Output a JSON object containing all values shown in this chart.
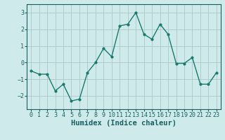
{
  "x": [
    0,
    1,
    2,
    3,
    4,
    5,
    6,
    7,
    8,
    9,
    10,
    11,
    12,
    13,
    14,
    15,
    16,
    17,
    18,
    19,
    20,
    21,
    22,
    23
  ],
  "y": [
    -0.5,
    -0.7,
    -0.7,
    -1.7,
    -1.3,
    -2.3,
    -2.2,
    -0.6,
    0.0,
    0.85,
    0.35,
    2.2,
    2.3,
    3.0,
    1.7,
    1.4,
    2.3,
    1.7,
    -0.05,
    -0.05,
    0.3,
    -1.3,
    -1.3,
    -0.6
  ],
  "line_color": "#1a7a6e",
  "marker": "o",
  "marker_size": 2.0,
  "linewidth": 1.0,
  "xlabel": "Humidex (Indice chaleur)",
  "xlim": [
    -0.5,
    23.5
  ],
  "ylim": [
    -2.8,
    3.5
  ],
  "yticks": [
    -2,
    -1,
    0,
    1,
    2,
    3
  ],
  "xticks": [
    0,
    1,
    2,
    3,
    4,
    5,
    6,
    7,
    8,
    9,
    10,
    11,
    12,
    13,
    14,
    15,
    16,
    17,
    18,
    19,
    20,
    21,
    22,
    23
  ],
  "bg_color": "#ceeaea",
  "grid_color": "#b0cccc",
  "axis_color": "#1a6060",
  "tick_label_fontsize": 6.0,
  "xlabel_fontsize": 7.5,
  "xlabel_fontweight": "bold"
}
